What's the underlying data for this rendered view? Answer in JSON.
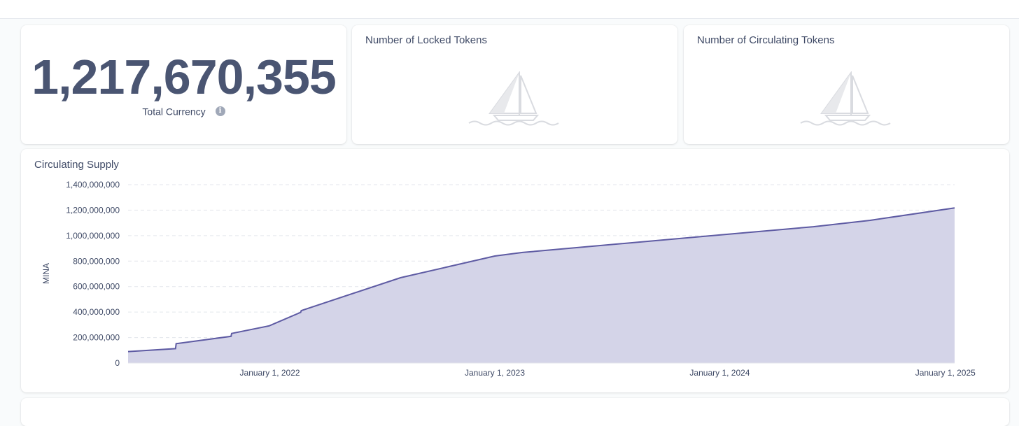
{
  "total_card": {
    "value": "1,217,670,355",
    "label": "Total Currency"
  },
  "locked_card": {
    "title": "Number of Locked Tokens",
    "empty_icon": "sailboat-icon"
  },
  "circulating_card": {
    "title": "Number of Circulating Tokens",
    "empty_icon": "sailboat-icon"
  },
  "colors": {
    "line": "#5e5ba3",
    "fill": "#d4d4e8",
    "grid": "#e3e6ec"
  },
  "chart_data": {
    "type": "area",
    "title": "Circulating Supply",
    "ylabel": "MINA",
    "xlabel": "",
    "ylim": [
      0,
      1400000000
    ],
    "yticks": [
      {
        "value": 0,
        "label": "0"
      },
      {
        "value": 200000000,
        "label": "200,000,000"
      },
      {
        "value": 400000000,
        "label": "400,000,000"
      },
      {
        "value": 600000000,
        "label": "600,000,000"
      },
      {
        "value": 800000000,
        "label": "800,000,000"
      },
      {
        "value": 1000000000,
        "label": "1,000,000,000"
      },
      {
        "value": 1200000000,
        "label": "1,200,000,000"
      },
      {
        "value": 1400000000,
        "label": "1,400,000,000"
      }
    ],
    "xrange": [
      "2021-05-16",
      "2025-01-16"
    ],
    "xticks": [
      {
        "date": "2022-01-01",
        "label": "January 1, 2022"
      },
      {
        "date": "2023-01-01",
        "label": "January 1, 2023"
      },
      {
        "date": "2024-01-01",
        "label": "January 1, 2024"
      },
      {
        "date": "2025-01-01",
        "label": "January 1, 2025"
      }
    ],
    "series": [
      {
        "points": [
          [
            "2021-05-16",
            90000000
          ],
          [
            "2021-08-01",
            113000000
          ],
          [
            "2021-08-02",
            152000000
          ],
          [
            "2021-10-30",
            210000000
          ],
          [
            "2021-10-31",
            232000000
          ],
          [
            "2021-12-31",
            292000000
          ],
          [
            "2022-02-20",
            398000000
          ],
          [
            "2022-02-21",
            412000000
          ],
          [
            "2022-08-01",
            670000000
          ],
          [
            "2023-01-01",
            840000000
          ],
          [
            "2023-02-15",
            868000000
          ],
          [
            "2024-01-01",
            1005000000
          ],
          [
            "2024-06-01",
            1070000000
          ],
          [
            "2024-09-01",
            1120000000
          ],
          [
            "2025-01-16",
            1218000000
          ]
        ]
      }
    ]
  }
}
